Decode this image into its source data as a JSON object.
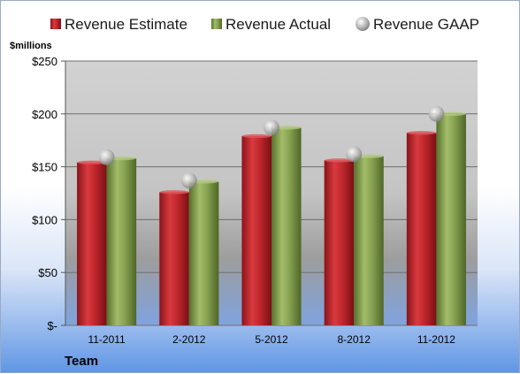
{
  "chart_data": {
    "type": "bar",
    "title": "",
    "unit_label": "$millions",
    "xlabel": "Team",
    "ylabel": "",
    "ylim": [
      0,
      250
    ],
    "yticks": [
      0,
      50,
      100,
      150,
      200,
      250
    ],
    "ytick_labels": [
      "$-",
      "$50",
      "$100",
      "$150",
      "$200",
      "$250"
    ],
    "categories": [
      "11-2011",
      "2-2012",
      "5-2012",
      "8-2012",
      "11-2012"
    ],
    "series": [
      {
        "name": "Revenue Estimate",
        "kind": "bar",
        "color": "#c0272d",
        "values": [
          154,
          126,
          179,
          156,
          182
        ]
      },
      {
        "name": "Revenue Actual",
        "kind": "bar",
        "color": "#7f9a48",
        "values": [
          158,
          136,
          187,
          160,
          200
        ]
      },
      {
        "name": "Revenue GAAP",
        "kind": "marker",
        "color": "#b8b8b8",
        "values": [
          159,
          137,
          187,
          162,
          200
        ]
      }
    ],
    "grid": true,
    "legend_position": "top"
  }
}
